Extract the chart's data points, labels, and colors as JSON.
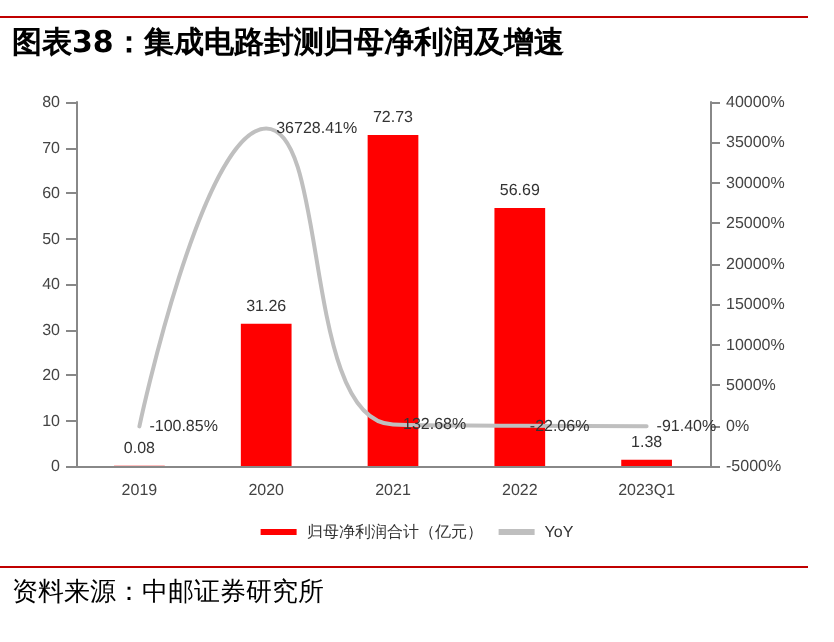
{
  "chart_data": {
    "type": "bar",
    "title": "图表38：集成电路封测归母净利润及增速",
    "annotations": [
      "资料来源：中邮证券研究所"
    ],
    "categories": [
      "2019",
      "2020",
      "2021",
      "2022",
      "2023Q1"
    ],
    "series": [
      {
        "name": "归母净利润合计（亿元）",
        "color": "#ff0000",
        "values": [
          0.08,
          31.26,
          72.73,
          56.69,
          1.38
        ],
        "value_labels": [
          "0.08",
          "31.26",
          "72.73",
          "56.69",
          "1.38"
        ]
      },
      {
        "name": "YoY",
        "type": "line",
        "axis": "y2",
        "color": "#bfbfbf",
        "marker": "none",
        "values": [
          -100.85,
          36728.41,
          132.68,
          -22.06,
          -91.4
        ],
        "value_labels": [
          "-100.85%",
          "36728.41%",
          "132.68%",
          "-22.06%",
          "-91.40%"
        ]
      }
    ],
    "ylim": [
      0,
      80
    ],
    "yticks": [
      0,
      10,
      20,
      30,
      40,
      50,
      60,
      70,
      80
    ],
    "y2lim": [
      -5000,
      40000
    ],
    "y2ticks": [
      {
        "value": -5000,
        "label": "-5000%"
      },
      {
        "value": 0,
        "label": "0%"
      },
      {
        "value": 5000,
        "label": "5000%"
      },
      {
        "value": 10000,
        "label": "10000%"
      },
      {
        "value": 15000,
        "label": "15000%"
      },
      {
        "value": 20000,
        "label": "20000%"
      },
      {
        "value": 25000,
        "label": "25000%"
      },
      {
        "value": 30000,
        "label": "30000%"
      },
      {
        "value": 35000,
        "label": "35000%"
      },
      {
        "value": 40000,
        "label": "40000%"
      }
    ],
    "grid": false,
    "legend": "bottom"
  }
}
